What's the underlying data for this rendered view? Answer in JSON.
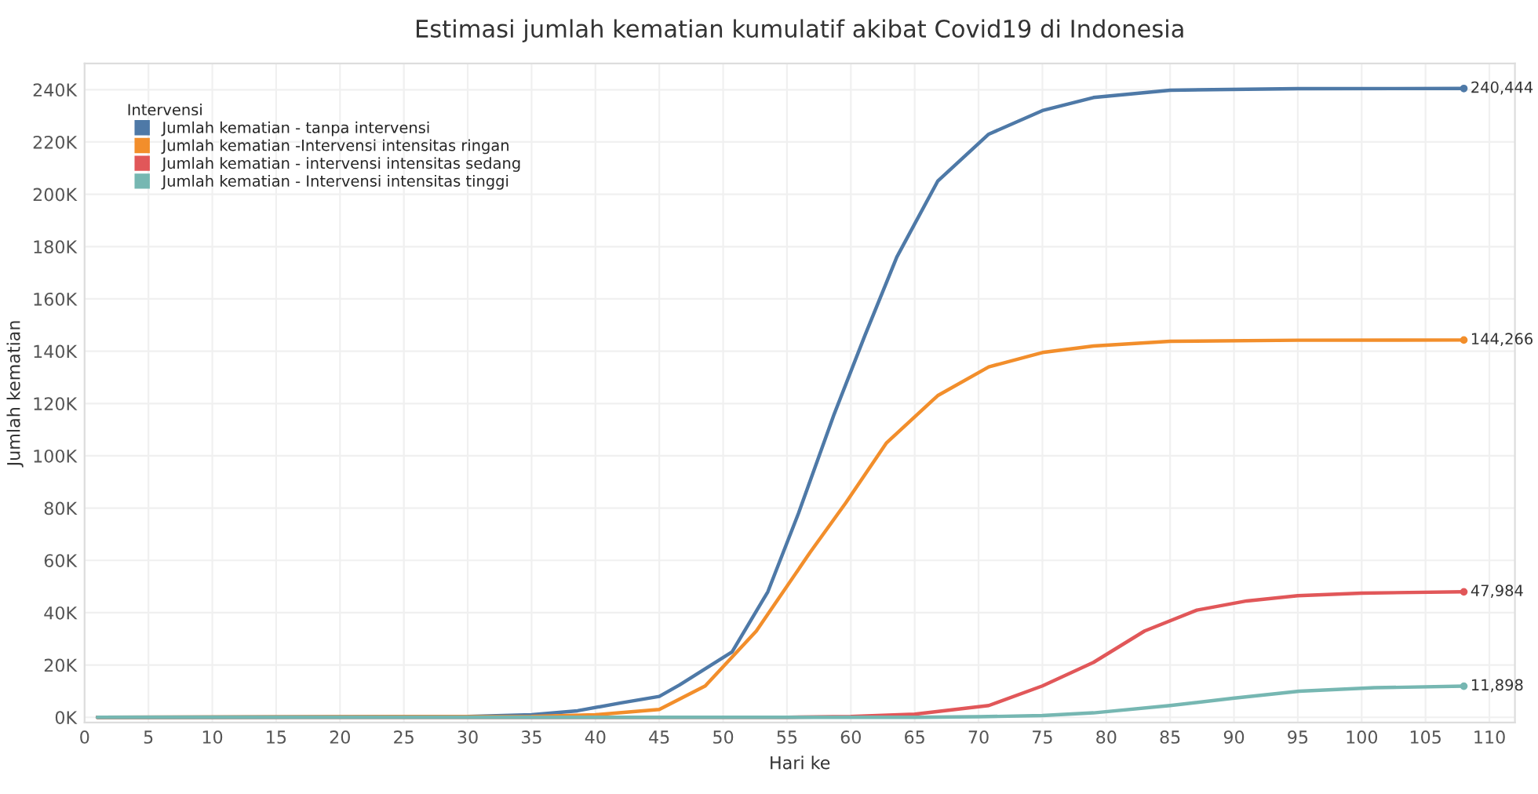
{
  "chart_data": {
    "type": "line",
    "title": "Estimasi jumlah kematian kumulatif akibat Covid19 di Indonesia",
    "xlabel": "Hari ke",
    "ylabel": "Jumlah kematian",
    "legend_title": "Intervensi",
    "legend": "top left",
    "grid": true,
    "line_style": "solid",
    "xlim": [
      0,
      112
    ],
    "xticks": [
      0,
      5,
      10,
      15,
      20,
      25,
      30,
      35,
      40,
      45,
      50,
      55,
      60,
      65,
      70,
      75,
      80,
      85,
      90,
      95,
      100,
      105,
      110
    ],
    "ylim": [
      -2000,
      250000
    ],
    "yticks": [
      {
        "value": 0,
        "label": "0K"
      },
      {
        "value": 20000,
        "label": "20K"
      },
      {
        "value": 40000,
        "label": "40K"
      },
      {
        "value": 60000,
        "label": "60K"
      },
      {
        "value": 80000,
        "label": "80K"
      },
      {
        "value": 100000,
        "label": "100K"
      },
      {
        "value": 120000,
        "label": "120K"
      },
      {
        "value": 140000,
        "label": "140K"
      },
      {
        "value": 160000,
        "label": "160K"
      },
      {
        "value": 180000,
        "label": "180K"
      },
      {
        "value": 200000,
        "label": "200K"
      },
      {
        "value": 220000,
        "label": "220K"
      },
      {
        "value": 240000,
        "label": "240K"
      }
    ],
    "series": [
      {
        "name": "Jumlah kematian - tanpa intervensi",
        "color": "#4e79a7",
        "x": [
          1,
          30,
          35,
          38.6,
          42,
          45,
          46.6,
          50.7,
          53.5,
          55.9,
          58.7,
          61.1,
          63.6,
          66.8,
          70.8,
          75,
          79,
          85,
          95,
          108
        ],
        "values": [
          0,
          300,
          1000,
          2500,
          5500,
          8000,
          12400,
          25000,
          48000,
          78000,
          116000,
          146000,
          176000,
          205000,
          223000,
          232000,
          237000,
          239800,
          240400,
          240444
        ],
        "value_labels": [
          null,
          null,
          null,
          null,
          null,
          null,
          null,
          null,
          null,
          null,
          null,
          null,
          null,
          null,
          null,
          null,
          null,
          null,
          null,
          "240,444"
        ]
      },
      {
        "name": "Jumlah kematian -Intervensi intensitas ringan",
        "color": "#f28e2b",
        "x": [
          1,
          35,
          40,
          45,
          48.6,
          52.6,
          56.8,
          59.6,
          62.8,
          66.8,
          70.8,
          75,
          79,
          85,
          95,
          108
        ],
        "values": [
          0,
          300,
          1000,
          3000,
          12000,
          33000,
          63000,
          82000,
          105000,
          123000,
          134000,
          139500,
          142000,
          143800,
          144200,
          144266
        ],
        "value_labels": [
          null,
          null,
          null,
          null,
          null,
          null,
          null,
          null,
          null,
          null,
          null,
          null,
          null,
          null,
          null,
          "144,266"
        ]
      },
      {
        "name": "Jumlah kematian - intervensi intensitas sedang",
        "color": "#e15759",
        "x": [
          1,
          55,
          60,
          65,
          70.8,
          75,
          79,
          83,
          87.1,
          91,
          95,
          100,
          108
        ],
        "values": [
          0,
          0,
          300,
          1200,
          4500,
          12000,
          21000,
          33000,
          41000,
          44500,
          46500,
          47500,
          47984
        ],
        "value_labels": [
          null,
          null,
          null,
          null,
          null,
          null,
          null,
          null,
          null,
          null,
          null,
          null,
          "47,984"
        ]
      },
      {
        "name": "Jumlah kematian - Intervensi intensitas tinggi",
        "color": "#76b7b2",
        "x": [
          1,
          65,
          70,
          75,
          79,
          85,
          89.9,
          95.1,
          101,
          108
        ],
        "values": [
          0,
          0,
          200,
          700,
          1700,
          4500,
          7300,
          10000,
          11300,
          11898
        ],
        "value_labels": [
          null,
          null,
          null,
          null,
          null,
          null,
          null,
          null,
          null,
          "11,898"
        ]
      }
    ]
  }
}
